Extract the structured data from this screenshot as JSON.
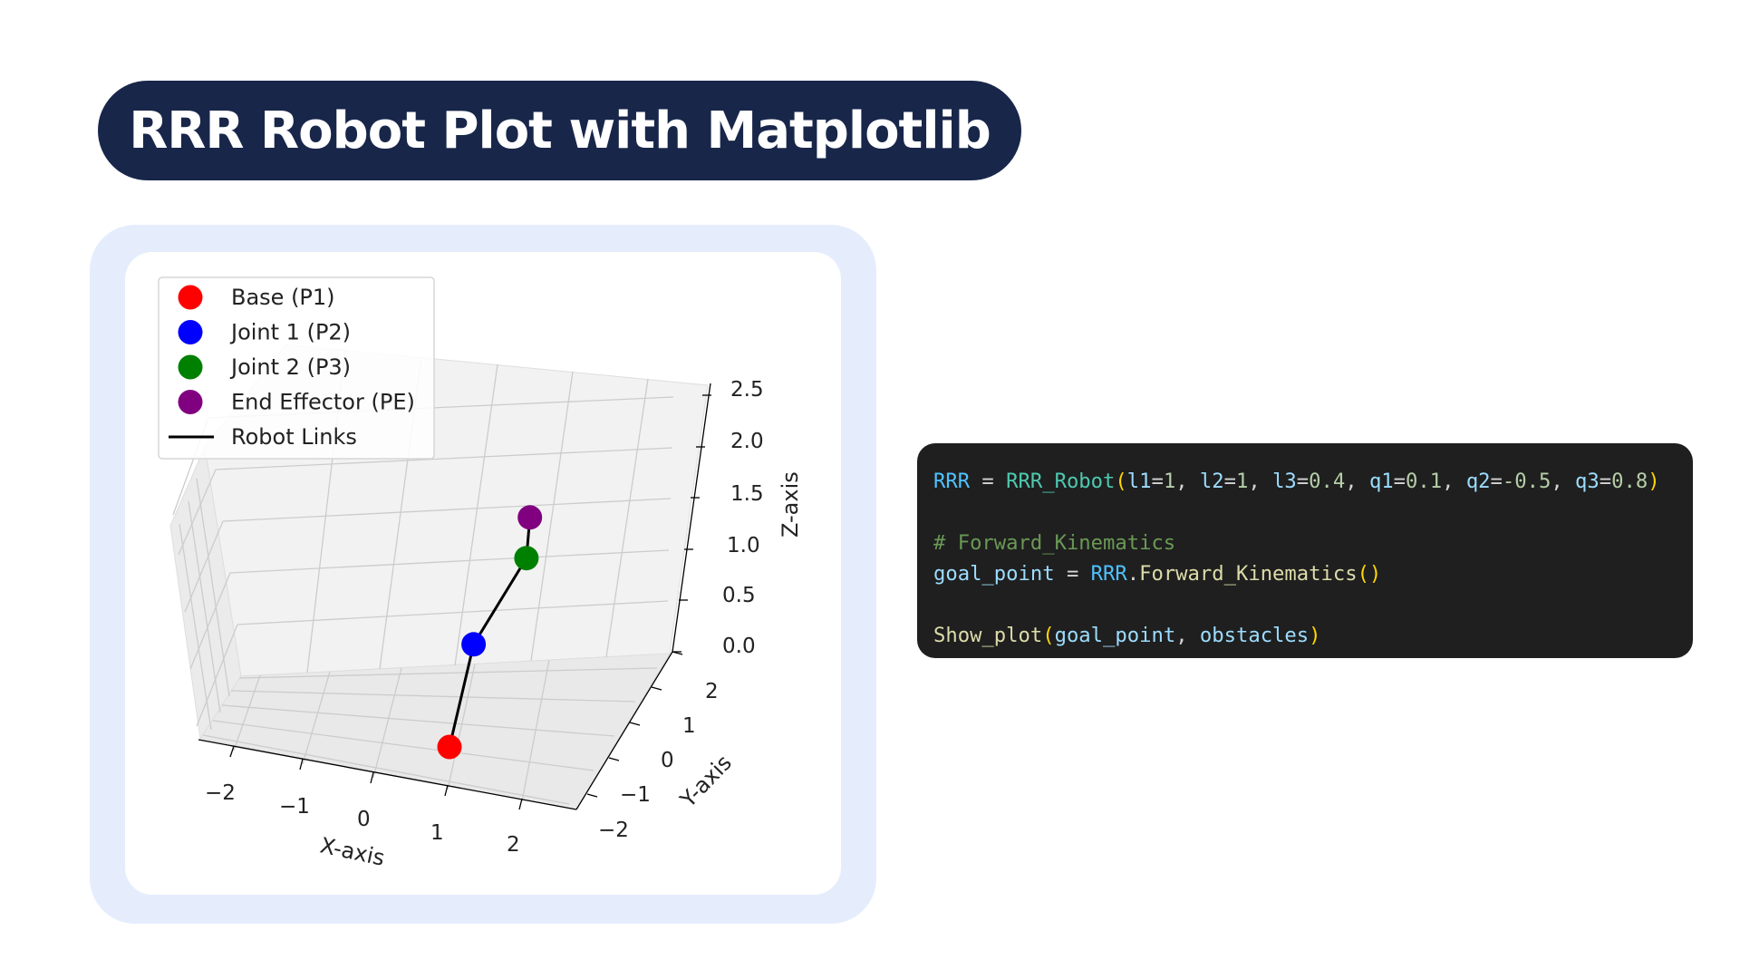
{
  "slide": {
    "title": "RRR Robot Plot with Matplotlib"
  },
  "chart_data": {
    "type": "scatter",
    "projection": "3d",
    "xlabel": "X-axis",
    "ylabel": "Y-axis",
    "zlabel": "Z-axis",
    "xlim": [
      -2.5,
      2.5
    ],
    "ylim": [
      -2.5,
      2.5
    ],
    "zlim": [
      0,
      2.5
    ],
    "x_ticks": [
      "−2",
      "−1",
      "0",
      "1",
      "2"
    ],
    "y_ticks": [
      "−2",
      "−1",
      "0",
      "1",
      "2"
    ],
    "z_ticks": [
      "0.0",
      "0.5",
      "1.0",
      "1.5",
      "2.0",
      "2.5"
    ],
    "grid": true,
    "legend_position": "top-left",
    "points": [
      {
        "name": "Base (P1)",
        "color": "#ff0000",
        "x": 0,
        "y": 0,
        "z": 0
      },
      {
        "name": "Joint 1 (P2)",
        "color": "#0000ff",
        "x": 0,
        "y": 0,
        "z": 1
      },
      {
        "name": "Joint 2 (P3)",
        "color": "#008000",
        "x": 0.43,
        "y": 0.04,
        "z": 1.88
      },
      {
        "name": "End Effector (PE)",
        "color": "#800080",
        "x": 0.35,
        "y": 0.03,
        "z": 2.27
      }
    ],
    "links": {
      "name": "Robot Links",
      "color": "#000000"
    }
  },
  "code": {
    "lines": [
      [
        [
          "RRR",
          "t-pl"
        ],
        [
          " = ",
          "t-op"
        ],
        [
          "RRR_Robot",
          "t-cls"
        ],
        [
          "(",
          "t-par"
        ],
        [
          "l1",
          "t-var"
        ],
        [
          "=",
          "t-op"
        ],
        [
          "1",
          "t-num"
        ],
        [
          ", ",
          "t-op"
        ],
        [
          "l2",
          "t-var"
        ],
        [
          "=",
          "t-op"
        ],
        [
          "1",
          "t-num"
        ],
        [
          ", ",
          "t-op"
        ],
        [
          "l3",
          "t-var"
        ],
        [
          "=",
          "t-op"
        ],
        [
          "0.4",
          "t-num"
        ],
        [
          ", ",
          "t-op"
        ],
        [
          "q1",
          "t-var"
        ],
        [
          "=",
          "t-op"
        ],
        [
          "0.1",
          "t-num"
        ],
        [
          ", ",
          "t-op"
        ],
        [
          "q2",
          "t-var"
        ],
        [
          "=",
          "t-op"
        ],
        [
          "-0.5",
          "t-num"
        ],
        [
          ", ",
          "t-op"
        ],
        [
          "q3",
          "t-var"
        ],
        [
          "=",
          "t-op"
        ],
        [
          "0.8",
          "t-num"
        ],
        [
          ")",
          "t-par"
        ]
      ],
      [],
      [
        [
          "# Forward_Kinematics",
          "t-com"
        ]
      ],
      [
        [
          "goal_point",
          "t-var"
        ],
        [
          " = ",
          "t-op"
        ],
        [
          "RRR",
          "t-pl"
        ],
        [
          ".",
          "t-op"
        ],
        [
          "Forward_Kinematics",
          "t-fn"
        ],
        [
          "()",
          "t-par"
        ]
      ],
      [],
      [
        [
          "Show_plot",
          "t-fn"
        ],
        [
          "(",
          "t-par"
        ],
        [
          "goal_point",
          "t-var"
        ],
        [
          ", ",
          "t-op"
        ],
        [
          "obstacles",
          "t-var"
        ],
        [
          ")",
          "t-par"
        ]
      ]
    ]
  }
}
